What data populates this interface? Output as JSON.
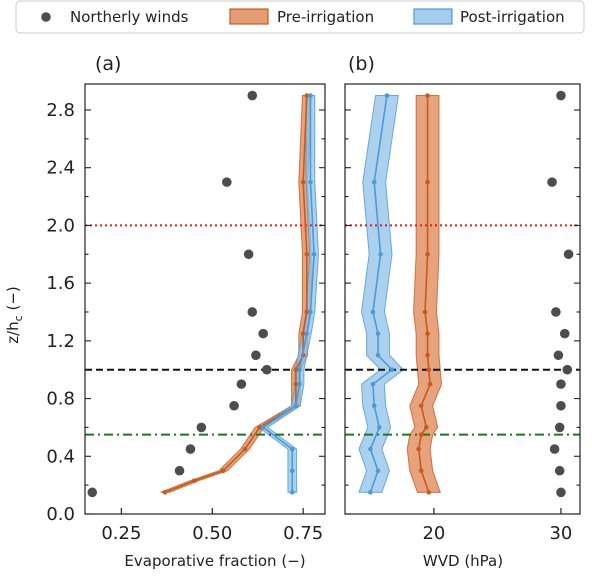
{
  "legend": {
    "placement": "top",
    "items": [
      {
        "label": "Northerly winds",
        "kind": "marker",
        "color": "#4d4d4d"
      },
      {
        "label": "Pre-irrigation",
        "kind": "band",
        "color": "#dd8452"
      },
      {
        "label": "Post-irrigation",
        "kind": "band",
        "color": "#4c9bd6"
      }
    ]
  },
  "colors": {
    "northerly": "#4d4d4d",
    "pre_line": "#c85a1e",
    "pre_band": "#dd8452",
    "post_line": "#4c9bd6",
    "post_band": "#8fc1e8",
    "ref_red": "#e31a1c",
    "ref_black": "#111111",
    "ref_green": "#1b7a1b"
  },
  "chart_data": [
    {
      "type": "line",
      "panel_label": "(a)",
      "xlabel": "Evaporative fraction (−)",
      "ylabel": "z/h",
      "ylabel_sub": "c",
      "ylabel_unit": " (−)",
      "xlim": [
        0.15,
        0.81
      ],
      "ylim": [
        0.0,
        2.98
      ],
      "xticks": [
        0.25,
        0.5,
        0.75
      ],
      "xtick_labels": [
        "0.25",
        "0.50",
        "0.75"
      ],
      "yticks": [
        0.0,
        0.4,
        0.8,
        1.2,
        1.6,
        2.0,
        2.4,
        2.8
      ],
      "ytick_labels": [
        "0.0",
        "0.4",
        "0.8",
        "1.2",
        "1.6",
        "2.0",
        "2.4",
        "2.8"
      ],
      "grid": false,
      "reference_lines": [
        {
          "y": 2.0,
          "style": "dotted",
          "color": "#e31a1c"
        },
        {
          "y": 1.0,
          "style": "dashed",
          "color": "#111111"
        },
        {
          "y": 0.55,
          "style": "dashdot",
          "color": "#1b7a1b"
        }
      ],
      "series": [
        {
          "name": "Northerly winds",
          "kind": "scatter",
          "x": [
            0.17,
            0.41,
            0.44,
            0.47,
            0.56,
            0.58,
            0.65,
            0.62,
            0.64,
            0.61,
            0.6,
            0.54,
            0.61
          ],
          "y": [
            0.15,
            0.3,
            0.45,
            0.6,
            0.75,
            0.9,
            1.0,
            1.1,
            1.25,
            1.4,
            1.8,
            2.3,
            2.9
          ]
        },
        {
          "name": "Pre-irrigation",
          "kind": "line_band",
          "x": [
            0.37,
            0.45,
            0.53,
            0.59,
            0.63,
            0.73,
            0.73,
            0.73,
            0.75,
            0.75,
            0.76,
            0.76,
            0.75,
            0.76
          ],
          "y": [
            0.15,
            0.23,
            0.3,
            0.45,
            0.6,
            0.75,
            0.9,
            1.0,
            1.1,
            1.25,
            1.4,
            1.8,
            2.3,
            2.9
          ],
          "band_halfwidth": 0.012
        },
        {
          "name": "Post-irrigation",
          "kind": "line_band",
          "x": [
            0.72,
            0.72,
            0.72,
            0.64,
            0.73,
            0.74,
            0.74,
            0.76,
            0.77,
            0.78,
            0.77,
            0.77
          ],
          "y": [
            0.15,
            0.3,
            0.45,
            0.6,
            0.75,
            0.9,
            1.0,
            1.25,
            1.4,
            1.8,
            2.3,
            2.9
          ],
          "band_halfwidth": 0.012
        }
      ]
    },
    {
      "type": "line",
      "panel_label": "(b)",
      "xlabel": "WVD (hPa)",
      "xlim": [
        13.0,
        31.5
      ],
      "ylim": [
        0.0,
        2.98
      ],
      "xticks": [
        20,
        30
      ],
      "xtick_labels": [
        "20",
        "30"
      ],
      "yticks": [
        0.0,
        0.4,
        0.8,
        1.2,
        1.6,
        2.0,
        2.4,
        2.8
      ],
      "grid": false,
      "reference_lines": [
        {
          "y": 2.0,
          "style": "dotted",
          "color": "#e31a1c"
        },
        {
          "y": 1.0,
          "style": "dashed",
          "color": "#111111"
        },
        {
          "y": 0.55,
          "style": "dashdot",
          "color": "#1b7a1b"
        }
      ],
      "series": [
        {
          "name": "Northerly winds",
          "kind": "scatter",
          "x": [
            30.0,
            29.9,
            29.5,
            29.9,
            30.0,
            30.0,
            30.5,
            29.8,
            30.3,
            29.6,
            30.6,
            29.3,
            30.0
          ],
          "y": [
            0.15,
            0.3,
            0.45,
            0.6,
            0.75,
            0.9,
            1.0,
            1.1,
            1.25,
            1.4,
            1.8,
            2.3,
            2.9
          ]
        },
        {
          "name": "Pre-irrigation",
          "kind": "line_band",
          "x": [
            19.6,
            19.0,
            18.8,
            19.0,
            19.4,
            19.0,
            19.7,
            19.6,
            19.5,
            19.5,
            19.3,
            19.5,
            19.5,
            19.5
          ],
          "y": [
            0.15,
            0.3,
            0.45,
            0.55,
            0.6,
            0.75,
            0.9,
            1.0,
            1.1,
            1.25,
            1.4,
            1.8,
            2.3,
            2.9
          ],
          "band_halfwidth": 0.9
        },
        {
          "name": "Post-irrigation",
          "kind": "line_band",
          "x": [
            15.0,
            15.6,
            15.0,
            15.7,
            15.3,
            15.2,
            16.7,
            15.6,
            15.6,
            15.2,
            15.8,
            15.3,
            16.3
          ],
          "y": [
            0.15,
            0.3,
            0.45,
            0.6,
            0.75,
            0.9,
            1.0,
            1.1,
            1.25,
            1.4,
            1.8,
            2.3,
            2.9
          ],
          "band_halfwidth": 0.9
        }
      ]
    }
  ]
}
